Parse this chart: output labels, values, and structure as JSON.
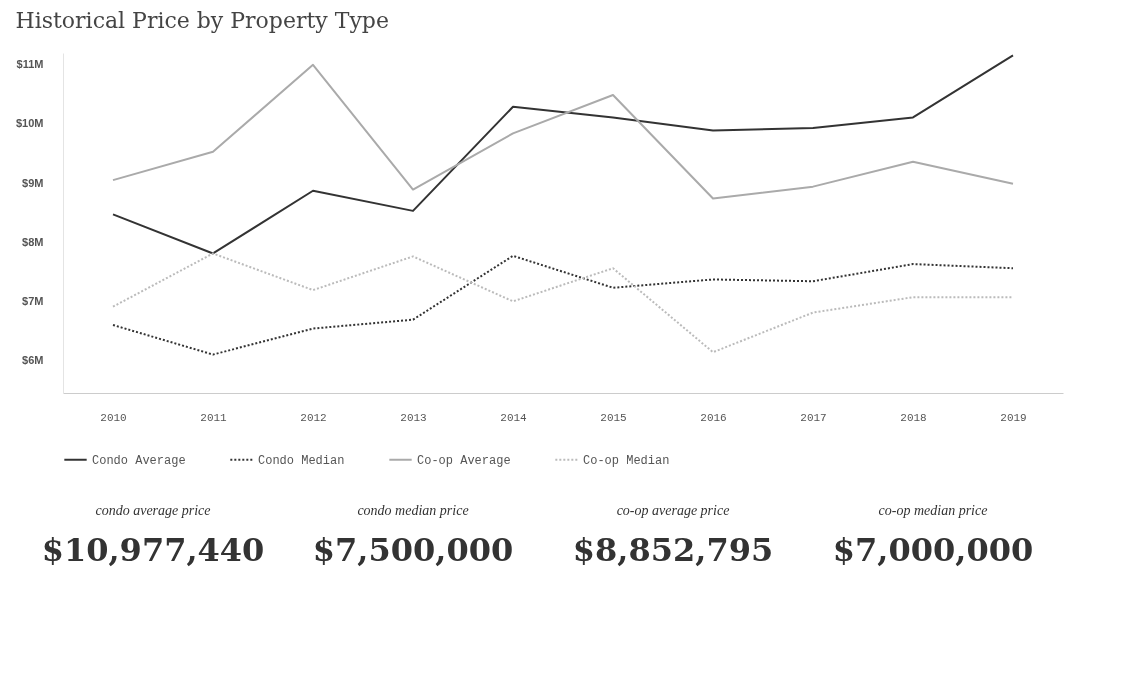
{
  "chart_data": {
    "type": "line",
    "title": "Historical Price by Property Type",
    "categories": [
      "2010",
      "2011",
      "2012",
      "2013",
      "2014",
      "2015",
      "2016",
      "2017",
      "2018",
      "2019"
    ],
    "series": [
      {
        "name": "Condo Average",
        "color": "#333333",
        "line_style": "solid",
        "values": [
          8.47,
          7.81,
          8.87,
          8.53,
          10.29,
          10.11,
          9.89,
          9.93,
          10.11,
          11.16
        ]
      },
      {
        "name": "Condo Median",
        "color": "#333333",
        "line_style": "dotted",
        "values": [
          6.6,
          6.1,
          6.54,
          6.69,
          7.77,
          7.23,
          7.37,
          7.34,
          7.63,
          7.56
        ]
      },
      {
        "name": "Co-op Average",
        "color": "#aaaaaa",
        "line_style": "solid",
        "values": [
          9.05,
          9.53,
          11.0,
          8.89,
          9.84,
          10.49,
          8.74,
          8.94,
          9.36,
          8.99
        ]
      },
      {
        "name": "Co-op Median",
        "color": "#bbbbbb",
        "line_style": "dotted",
        "values": [
          6.91,
          7.81,
          7.19,
          7.76,
          7.0,
          7.56,
          6.14,
          6.81,
          7.07,
          7.07
        ]
      }
    ],
    "ylim": [
      5.45,
      11.2
    ],
    "yticks": [
      {
        "value": 6,
        "label": "$6M"
      },
      {
        "value": 7,
        "label": "$7M"
      },
      {
        "value": 8,
        "label": "$8M"
      },
      {
        "value": 9,
        "label": "$9M"
      },
      {
        "value": 10,
        "label": "$10M"
      },
      {
        "value": 11,
        "label": "$11M"
      }
    ],
    "legend": "bottom",
    "annotations": [
      "condo average price",
      "$10,977,440",
      "condo  median price",
      "$7,500,000",
      "co-op average price",
      "$8,852,795",
      "co-op median price",
      "$7,000,000"
    ]
  }
}
